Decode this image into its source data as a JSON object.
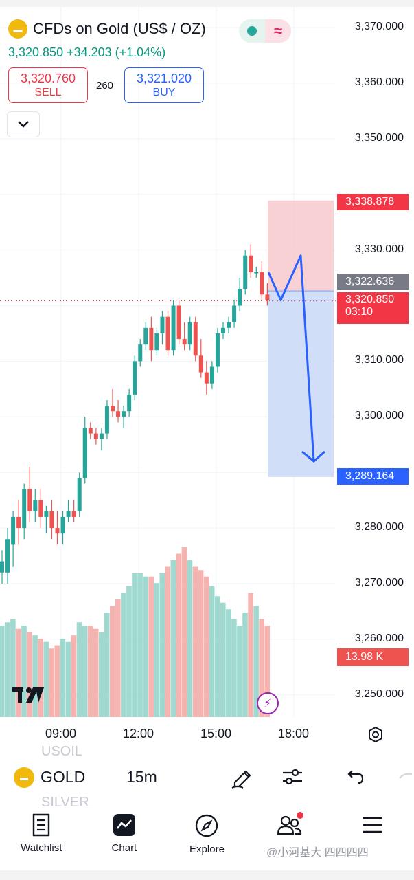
{
  "header": {
    "title": "CFDs on Gold (US$ / OZ)",
    "price_change_line": "3,320.850  +34.203 (+1.04%)",
    "sell_price": "3,320.760",
    "sell_label": "SELL",
    "buy_price": "3,321.020",
    "buy_label": "BUY",
    "spread": "260",
    "status_icon": "wave-icon"
  },
  "price_axis": {
    "ticks": [
      "3,370.000",
      "3,360.000",
      "3,350.000",
      "3,330.000",
      "3,310.000",
      "3,300.000",
      "3,280.000",
      "3,270.000",
      "3,260.000",
      "3,250.000"
    ],
    "tags": {
      "stop": "3,338.878",
      "entry": "3,322.636",
      "current": "3,320.850",
      "countdown": "03:10",
      "target": "3,289.164",
      "volume": "13.98 K"
    }
  },
  "time_axis": [
    "09:00",
    "12:00",
    "15:00",
    "18:00"
  ],
  "colors": {
    "up": "#26a69a",
    "down": "#ef5350",
    "stop_zone": "#f7c9ce",
    "target_zone": "#c9d8f7",
    "projection": "#2962ff"
  },
  "chart_data": {
    "type": "candlestick",
    "ylim": [
      3245,
      3375
    ],
    "interval": "15m",
    "candles": [
      {
        "o": 3272,
        "h": 3276,
        "l": 3270,
        "c": 3274
      },
      {
        "o": 3272,
        "h": 3280,
        "l": 3270,
        "c": 3278
      },
      {
        "o": 3277,
        "h": 3283,
        "l": 3273,
        "c": 3282
      },
      {
        "o": 3282,
        "h": 3285,
        "l": 3277,
        "c": 3280
      },
      {
        "o": 3280,
        "h": 3288,
        "l": 3278,
        "c": 3287
      },
      {
        "o": 3287,
        "h": 3291,
        "l": 3281,
        "c": 3283
      },
      {
        "o": 3283,
        "h": 3287,
        "l": 3281,
        "c": 3285
      },
      {
        "o": 3285,
        "h": 3287,
        "l": 3280,
        "c": 3282
      },
      {
        "o": 3282,
        "h": 3284,
        "l": 3279,
        "c": 3283
      },
      {
        "o": 3283,
        "h": 3285,
        "l": 3278,
        "c": 3280
      },
      {
        "o": 3280,
        "h": 3283,
        "l": 3277,
        "c": 3279
      },
      {
        "o": 3279,
        "h": 3283,
        "l": 3277,
        "c": 3282
      },
      {
        "o": 3282,
        "h": 3285,
        "l": 3281,
        "c": 3283
      },
      {
        "o": 3283,
        "h": 3285,
        "l": 3281,
        "c": 3282
      },
      {
        "o": 3283,
        "h": 3290,
        "l": 3282,
        "c": 3289
      },
      {
        "o": 3289,
        "h": 3300,
        "l": 3288,
        "c": 3298
      },
      {
        "o": 3298,
        "h": 3299,
        "l": 3296,
        "c": 3297
      },
      {
        "o": 3297,
        "h": 3298,
        "l": 3295,
        "c": 3296
      },
      {
        "o": 3296,
        "h": 3298,
        "l": 3294,
        "c": 3297
      },
      {
        "o": 3297,
        "h": 3303,
        "l": 3296,
        "c": 3302
      },
      {
        "o": 3302,
        "h": 3305,
        "l": 3300,
        "c": 3301
      },
      {
        "o": 3301,
        "h": 3303,
        "l": 3299,
        "c": 3300
      },
      {
        "o": 3300,
        "h": 3302,
        "l": 3298,
        "c": 3301
      },
      {
        "o": 3301,
        "h": 3305,
        "l": 3300,
        "c": 3304
      },
      {
        "o": 3304,
        "h": 3311,
        "l": 3303,
        "c": 3310
      },
      {
        "o": 3310,
        "h": 3314,
        "l": 3309,
        "c": 3313
      },
      {
        "o": 3313,
        "h": 3317,
        "l": 3312,
        "c": 3316
      },
      {
        "o": 3316,
        "h": 3318,
        "l": 3310,
        "c": 3312
      },
      {
        "o": 3312,
        "h": 3316,
        "l": 3311,
        "c": 3315
      },
      {
        "o": 3315,
        "h": 3319,
        "l": 3313,
        "c": 3318
      },
      {
        "o": 3318,
        "h": 3319,
        "l": 3311,
        "c": 3312
      },
      {
        "o": 3312,
        "h": 3321,
        "l": 3311,
        "c": 3320
      },
      {
        "o": 3320,
        "h": 3321,
        "l": 3313,
        "c": 3314
      },
      {
        "o": 3314,
        "h": 3317,
        "l": 3312,
        "c": 3313
      },
      {
        "o": 3313,
        "h": 3318,
        "l": 3312,
        "c": 3317
      },
      {
        "o": 3317,
        "h": 3318,
        "l": 3310,
        "c": 3311
      },
      {
        "o": 3311,
        "h": 3314,
        "l": 3307,
        "c": 3308
      },
      {
        "o": 3308,
        "h": 3310,
        "l": 3304,
        "c": 3306
      },
      {
        "o": 3306,
        "h": 3310,
        "l": 3305,
        "c": 3309
      },
      {
        "o": 3309,
        "h": 3316,
        "l": 3308,
        "c": 3315
      },
      {
        "o": 3315,
        "h": 3317,
        "l": 3314,
        "c": 3316
      },
      {
        "o": 3316,
        "h": 3318,
        "l": 3315,
        "c": 3317
      },
      {
        "o": 3317,
        "h": 3321,
        "l": 3316,
        "c": 3320
      },
      {
        "o": 3320,
        "h": 3325,
        "l": 3319,
        "c": 3323
      },
      {
        "o": 3323,
        "h": 3330,
        "l": 3322,
        "c": 3329
      },
      {
        "o": 3329,
        "h": 3331,
        "l": 3325,
        "c": 3326
      },
      {
        "o": 3326,
        "h": 3327,
        "l": 3325,
        "c": 3326
      },
      {
        "o": 3326,
        "h": 3328,
        "l": 3321,
        "c": 3322
      },
      {
        "o": 3322,
        "h": 3324,
        "l": 3320,
        "c": 3321
      }
    ],
    "volumes": [
      14,
      14.5,
      15,
      13.5,
      14,
      13,
      12.5,
      12,
      11.5,
      10.5,
      11,
      12,
      11.5,
      12.5,
      14.5,
      14,
      14,
      13.5,
      13,
      16,
      17,
      18,
      19,
      20,
      22,
      22,
      21.5,
      21.5,
      20.5,
      22,
      23,
      24,
      25,
      26,
      24,
      23,
      22.5,
      21.5,
      20,
      18.5,
      17.5,
      16.5,
      15,
      14,
      16,
      19,
      17,
      15,
      14
    ],
    "projection_path": [
      [
        3326,
        0
      ],
      [
        3321,
        1
      ],
      [
        3329,
        2
      ],
      [
        3292,
        3
      ]
    ],
    "time_ticks": [
      "09:00",
      "12:00",
      "15:00",
      "18:00"
    ]
  },
  "toolbar": {
    "ghost_prev": "USOIL",
    "ghost_next": "SILVER",
    "symbol": "GOLD",
    "interval": "15m"
  },
  "nav": {
    "items": [
      {
        "label": "Watchlist",
        "icon": "watchlist-icon"
      },
      {
        "label": "Chart",
        "icon": "chart-icon"
      },
      {
        "label": "Explore",
        "icon": "compass-icon"
      },
      {
        "label": "",
        "icon": "community-icon"
      },
      {
        "label": "",
        "icon": "menu-icon"
      }
    ],
    "watermark": "@小河基大 四四四四"
  }
}
